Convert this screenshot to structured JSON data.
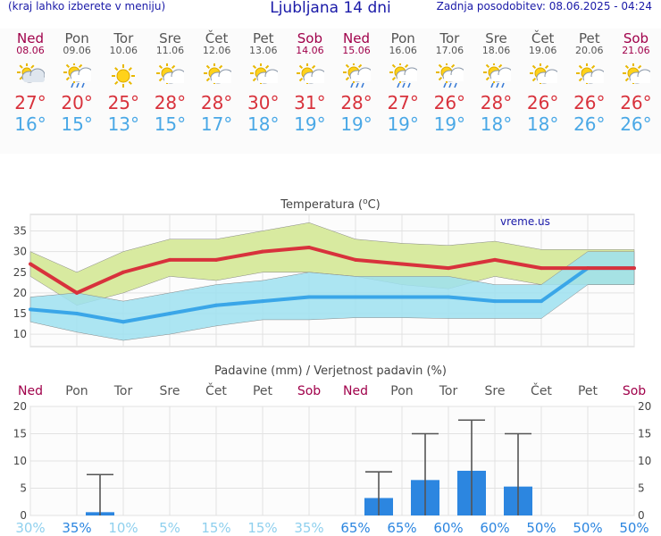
{
  "header": {
    "menu_note": "(kraj lahko izberete v meniju)",
    "title": "Ljubljana 14 dni",
    "updated": "Zadnja posodobitev: 08.06.2025 - 04:24"
  },
  "days": [
    {
      "name": "Ned",
      "date": "08.06",
      "weekend": true,
      "icon": "cloudy-sun-icon",
      "tmax": "27°",
      "tmin": "16°"
    },
    {
      "name": "Pon",
      "date": "09.06",
      "weekend": false,
      "icon": "sun-cloud-rain-icon",
      "tmax": "20°",
      "tmin": "15°"
    },
    {
      "name": "Tor",
      "date": "10.06",
      "weekend": false,
      "icon": "sun-icon",
      "tmax": "25°",
      "tmin": "13°"
    },
    {
      "name": "Sre",
      "date": "11.06",
      "weekend": false,
      "icon": "sun-cloud-icon",
      "tmax": "28°",
      "tmin": "15°"
    },
    {
      "name": "Čet",
      "date": "12.06",
      "weekend": false,
      "icon": "sun-cloud-icon",
      "tmax": "28°",
      "tmin": "17°"
    },
    {
      "name": "Pet",
      "date": "13.06",
      "weekend": false,
      "icon": "sun-cloud-icon",
      "tmax": "30°",
      "tmin": "18°"
    },
    {
      "name": "Sob",
      "date": "14.06",
      "weekend": true,
      "icon": "sun-cloud-icon",
      "tmax": "31°",
      "tmin": "19°"
    },
    {
      "name": "Ned",
      "date": "15.06",
      "weekend": true,
      "icon": "sun-cloud-rain-icon",
      "tmax": "28°",
      "tmin": "19°"
    },
    {
      "name": "Pon",
      "date": "16.06",
      "weekend": false,
      "icon": "sun-cloud-rain-icon",
      "tmax": "27°",
      "tmin": "19°"
    },
    {
      "name": "Tor",
      "date": "17.06",
      "weekend": false,
      "icon": "sun-cloud-rain-icon",
      "tmax": "26°",
      "tmin": "19°"
    },
    {
      "name": "Sre",
      "date": "18.06",
      "weekend": false,
      "icon": "sun-cloud-rain-icon",
      "tmax": "28°",
      "tmin": "18°"
    },
    {
      "name": "Čet",
      "date": "19.06",
      "weekend": false,
      "icon": "sun-cloud-icon",
      "tmax": "26°",
      "tmin": "18°"
    },
    {
      "name": "Pet",
      "date": "20.06",
      "weekend": false,
      "icon": "sun-cloud-icon",
      "tmax": "26°",
      "tmin": "26°"
    },
    {
      "name": "Sob",
      "date": "21.06",
      "weekend": true,
      "icon": "sun-cloud-icon",
      "tmax": "26°",
      "tmin": "26°"
    }
  ],
  "colors": {
    "max_line": "#d8323c",
    "min_line": "#3aa6e8",
    "max_band": "#d8eaa0",
    "min_band": "#9ee0f0",
    "overlap": "#7fcf8a",
    "bar": "#2c86e0",
    "weekend": "#a0004a"
  },
  "chart_data": [
    {
      "type": "line",
      "title": "Temperatura (°C)",
      "title_main": "Temperatura (",
      "title_deg": "o",
      "title_unit": "C)",
      "watermark": "vreme.us",
      "ylim": [
        7,
        39
      ],
      "y_ticks": [
        10,
        15,
        20,
        25,
        30,
        35
      ],
      "x": [
        "Ned",
        "Pon",
        "Tor",
        "Sre",
        "Čet",
        "Pet",
        "Sob",
        "Ned",
        "Pon",
        "Tor",
        "Sre",
        "Čet",
        "Pet",
        "Sob"
      ],
      "series": [
        {
          "values": [
            27,
            20,
            25,
            28,
            28,
            30,
            31,
            28,
            27,
            26,
            28,
            26,
            26,
            26
          ],
          "band_high": [
            30,
            25,
            30,
            33,
            33,
            35,
            37,
            33,
            32,
            31.5,
            32.5,
            30.5,
            30.5,
            30.5
          ],
          "band_low": [
            24,
            17,
            20,
            24,
            23,
            25,
            25,
            24,
            22,
            21,
            24,
            22,
            22,
            22
          ]
        },
        {
          "values": [
            16,
            15,
            13,
            15,
            17,
            18,
            19,
            19,
            19,
            19,
            18,
            18,
            26,
            26
          ],
          "band_high": [
            19,
            20,
            18,
            20,
            22,
            23,
            25,
            24,
            24,
            24,
            22,
            22,
            30,
            30
          ],
          "band_low": [
            13,
            10.5,
            8.5,
            10,
            12,
            13.5,
            13.5,
            14,
            14,
            13.8,
            13.8,
            13.8,
            22,
            22
          ]
        }
      ],
      "grid": true
    },
    {
      "type": "bar",
      "title": "Padavine (mm) / Verjetnost padavin (%)",
      "categories": [
        "Ned",
        "Pon",
        "Tor",
        "Sre",
        "Čet",
        "Pet",
        "Sob",
        "Ned",
        "Pon",
        "Tor",
        "Sre",
        "Čet",
        "Pet",
        "Sob"
      ],
      "values": [
        0,
        0.6,
        0,
        0,
        0,
        0,
        0,
        3.2,
        6.5,
        8.2,
        5.3,
        0,
        0,
        0
      ],
      "error_high": [
        null,
        7.5,
        null,
        null,
        null,
        null,
        null,
        8,
        15,
        17.5,
        15,
        null,
        null,
        null
      ],
      "probability": [
        "30%",
        "35%",
        "10%",
        "5%",
        "15%",
        "15%",
        "35%",
        "65%",
        "65%",
        "60%",
        "60%",
        "50%",
        "50%",
        "50%"
      ],
      "prob_strength": [
        0,
        1,
        0,
        0,
        0,
        0,
        0,
        1,
        1,
        1,
        1,
        1,
        1,
        1
      ],
      "ylim": [
        0,
        20
      ],
      "y_ticks": [
        0,
        5,
        10,
        15,
        20
      ],
      "grid": true
    }
  ]
}
